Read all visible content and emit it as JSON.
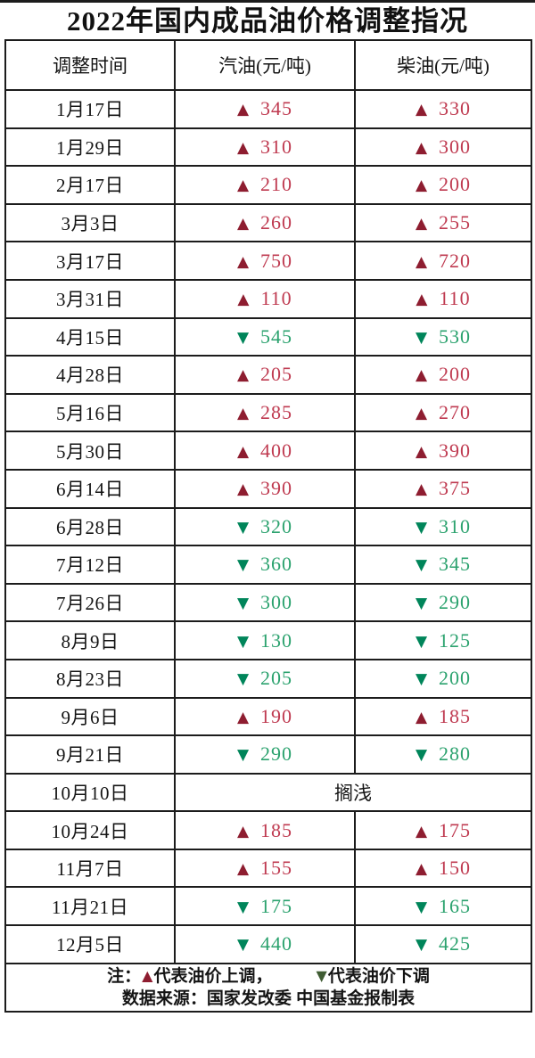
{
  "title": "2022年国内成品油价格调整指况",
  "columns": [
    "调整时间",
    "汽油(元/吨)",
    "柴油(元/吨)"
  ],
  "icons": {
    "up": "▲",
    "down": "▼"
  },
  "colors": {
    "up_triangle": "#8e1d30",
    "up_value_text": "#bf3a50",
    "down_triangle": "#00855a",
    "down_value_text": "#2ba26e",
    "note_up_triangle": "#8e1d30",
    "note_down_triangle": "#3f5c33",
    "border": "#1c1c1c"
  },
  "chart_data": {
    "type": "table",
    "title": "2022年国内成品油价格调整指况",
    "columns": [
      "调整时间",
      "汽油(元/吨)",
      "柴油(元/吨)"
    ],
    "rows_summary": "23 price adjustment events in 2022; up = increase (red), down = decrease (green); 10月10日 stranded (搁浅)"
  },
  "rows": [
    {
      "date": "1月17日",
      "gas": {
        "dir": "up",
        "value": "345"
      },
      "diesel": {
        "dir": "up",
        "value": "330"
      }
    },
    {
      "date": "1月29日",
      "gas": {
        "dir": "up",
        "value": "310"
      },
      "diesel": {
        "dir": "up",
        "value": "300"
      }
    },
    {
      "date": "2月17日",
      "gas": {
        "dir": "up",
        "value": "210"
      },
      "diesel": {
        "dir": "up",
        "value": "200"
      }
    },
    {
      "date": "3月3日",
      "gas": {
        "dir": "up",
        "value": "260"
      },
      "diesel": {
        "dir": "up",
        "value": "255"
      }
    },
    {
      "date": "3月17日",
      "gas": {
        "dir": "up",
        "value": "750"
      },
      "diesel": {
        "dir": "up",
        "value": "720"
      }
    },
    {
      "date": "3月31日",
      "gas": {
        "dir": "up",
        "value": "110"
      },
      "diesel": {
        "dir": "up",
        "value": "110"
      }
    },
    {
      "date": "4月15日",
      "gas": {
        "dir": "down",
        "value": "545"
      },
      "diesel": {
        "dir": "down",
        "value": "530"
      }
    },
    {
      "date": "4月28日",
      "gas": {
        "dir": "up",
        "value": "205"
      },
      "diesel": {
        "dir": "up",
        "value": "200"
      }
    },
    {
      "date": "5月16日",
      "gas": {
        "dir": "up",
        "value": "285"
      },
      "diesel": {
        "dir": "up",
        "value": "270"
      }
    },
    {
      "date": "5月30日",
      "gas": {
        "dir": "up",
        "value": "400"
      },
      "diesel": {
        "dir": "up",
        "value": "390"
      }
    },
    {
      "date": "6月14日",
      "gas": {
        "dir": "up",
        "value": "390"
      },
      "diesel": {
        "dir": "up",
        "value": "375"
      }
    },
    {
      "date": "6月28日",
      "gas": {
        "dir": "down",
        "value": "320"
      },
      "diesel": {
        "dir": "down",
        "value": "310"
      }
    },
    {
      "date": "7月12日",
      "gas": {
        "dir": "down",
        "value": "360"
      },
      "diesel": {
        "dir": "down",
        "value": "345"
      }
    },
    {
      "date": "7月26日",
      "gas": {
        "dir": "down",
        "value": "300"
      },
      "diesel": {
        "dir": "down",
        "value": "290"
      }
    },
    {
      "date": "8月9日",
      "gas": {
        "dir": "down",
        "value": "130"
      },
      "diesel": {
        "dir": "down",
        "value": "125"
      }
    },
    {
      "date": "8月23日",
      "gas": {
        "dir": "down",
        "value": "205"
      },
      "diesel": {
        "dir": "down",
        "value": "200"
      }
    },
    {
      "date": "9月6日",
      "gas": {
        "dir": "up",
        "value": "190"
      },
      "diesel": {
        "dir": "up",
        "value": "185"
      }
    },
    {
      "date": "9月21日",
      "gas": {
        "dir": "down",
        "value": "290"
      },
      "diesel": {
        "dir": "down",
        "value": "280"
      }
    },
    {
      "date": "10月10日",
      "stranded": "搁浅"
    },
    {
      "date": "10月24日",
      "gas": {
        "dir": "up",
        "value": "185"
      },
      "diesel": {
        "dir": "up",
        "value": "175"
      }
    },
    {
      "date": "11月7日",
      "gas": {
        "dir": "up",
        "value": "155"
      },
      "diesel": {
        "dir": "up",
        "value": "150"
      }
    },
    {
      "date": "11月21日",
      "gas": {
        "dir": "down",
        "value": "175"
      },
      "diesel": {
        "dir": "down",
        "value": "165"
      }
    },
    {
      "date": "12月5日",
      "gas": {
        "dir": "down",
        "value": "440"
      },
      "diesel": {
        "dir": "down",
        "value": "425"
      }
    }
  ],
  "notes": {
    "prefix": "注：",
    "up_label": "代表油价上调，",
    "down_label": "代表油价下调",
    "source": "数据来源：国家发改委  中国基金报制表"
  }
}
